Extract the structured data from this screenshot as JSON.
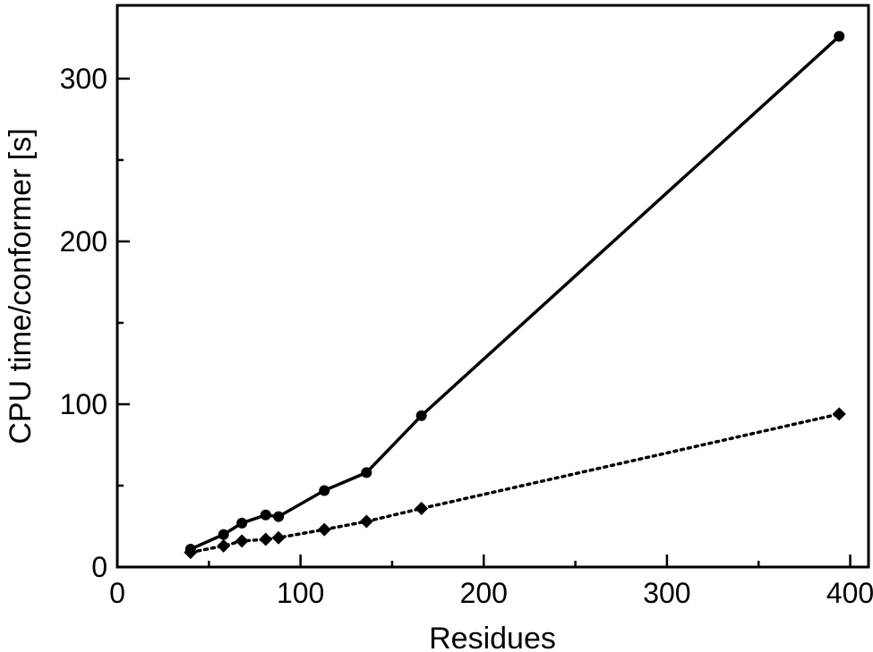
{
  "chart_data": {
    "type": "line",
    "title": "",
    "xlabel": "Residues",
    "ylabel": "CPU time/conformer [s]",
    "xlim": [
      0,
      410
    ],
    "ylim": [
      0,
      345
    ],
    "x_ticks_major": [
      0,
      100,
      200,
      300,
      400
    ],
    "x_ticks_minor": [
      50,
      150,
      250,
      350
    ],
    "y_ticks_major": [
      0,
      100,
      200,
      300
    ],
    "y_ticks_minor": [
      50,
      150,
      250
    ],
    "grid": false,
    "legend": "none",
    "series": [
      {
        "style": "solid",
        "marker": "circle",
        "color": "#000000",
        "x": [
          40,
          58,
          68,
          81,
          88,
          113,
          136,
          166,
          394
        ],
        "y": [
          11,
          20,
          27,
          32,
          31,
          47,
          58,
          93,
          326
        ]
      },
      {
        "style": "dotted",
        "marker": "diamond",
        "color": "#000000",
        "x": [
          40,
          58,
          68,
          81,
          88,
          113,
          136,
          166,
          394
        ],
        "y": [
          9,
          13,
          16,
          17,
          18,
          23,
          28,
          36,
          94
        ]
      }
    ]
  }
}
